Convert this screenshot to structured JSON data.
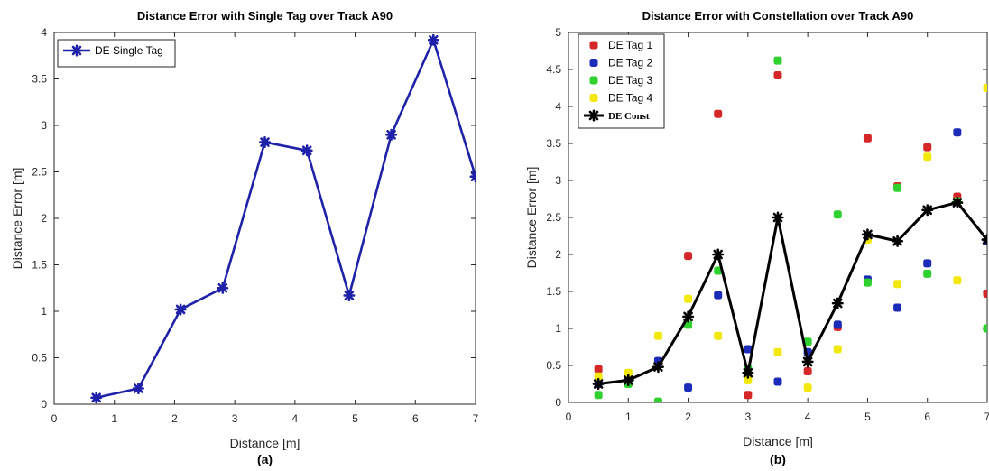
{
  "chart_data": [
    {
      "type": "line",
      "title": "Distance Error with Single Tag over Track A90",
      "xlabel": "Distance [m]",
      "ylabel": "Distance Error [m]",
      "caption": "(a)",
      "xlim": [
        0,
        7
      ],
      "ylim": [
        0,
        4
      ],
      "xticks": [
        0,
        1,
        2,
        3,
        4,
        5,
        6,
        7
      ],
      "yticks": [
        0,
        0.5,
        1,
        1.5,
        2,
        2.5,
        3,
        3.5,
        4
      ],
      "ytick_labels": [
        "0",
        "0.5",
        "1",
        "1.5",
        "2",
        "2.5",
        "3",
        "3.5",
        "4"
      ],
      "grid": false,
      "legend_position": "top-left",
      "series": [
        {
          "name": "DE Single Tag",
          "color": "#1f22a8",
          "x": [
            0.7,
            1.4,
            2.1,
            2.8,
            3.5,
            4.2,
            4.9,
            5.6,
            6.3,
            7.0
          ],
          "values": [
            0.07,
            0.17,
            1.02,
            1.25,
            2.82,
            2.73,
            1.17,
            2.9,
            3.92,
            2.45
          ]
        }
      ]
    },
    {
      "type": "scatter",
      "title": "Distance Error with Constellation over Track A90",
      "xlabel": "Distance [m]",
      "ylabel": "Distance Error [m]",
      "caption": "(b)",
      "xlim": [
        0,
        7
      ],
      "ylim": [
        0,
        5
      ],
      "xticks": [
        0,
        1,
        2,
        3,
        4,
        5,
        6,
        7
      ],
      "yticks": [
        0,
        0.5,
        1,
        1.5,
        2,
        2.5,
        3,
        3.5,
        4,
        4.5,
        5
      ],
      "ytick_labels": [
        "0",
        "0.5",
        "1",
        "1.5",
        "2",
        "2.5",
        "3",
        "3.5",
        "4",
        "4.5",
        "5"
      ],
      "grid": false,
      "legend_position": "top-left",
      "series": [
        {
          "name": "DE Tag 1",
          "color": "#d62728",
          "style": "markers",
          "x": [
            0.5,
            1,
            1.5,
            2,
            2.5,
            3,
            3.5,
            4,
            4.5,
            5,
            5.5,
            6,
            6.5,
            7
          ],
          "values": [
            0.45,
            0.28,
            0.55,
            1.98,
            3.9,
            0.1,
            4.42,
            0.42,
            1.02,
            3.57,
            2.92,
            3.45,
            2.78,
            1.47
          ]
        },
        {
          "name": "DE Tag 2",
          "color": "#1c2bb8",
          "style": "markers",
          "x": [
            0.5,
            1,
            1.5,
            2,
            2.5,
            3,
            3.5,
            4,
            4.5,
            5,
            5.5,
            6,
            6.5,
            7
          ],
          "values": [
            0.25,
            0.3,
            0.56,
            0.2,
            1.45,
            0.72,
            0.28,
            0.68,
            1.05,
            1.66,
            1.28,
            1.88,
            3.65,
            2.18
          ]
        },
        {
          "name": "DE Tag 3",
          "color": "#2ed12e",
          "style": "markers",
          "x": [
            0.5,
            1,
            1.5,
            2,
            2.5,
            3,
            3.5,
            4,
            4.5,
            5,
            5.5,
            6,
            6.5,
            7
          ],
          "values": [
            0.1,
            0.25,
            0.01,
            1.05,
            1.78,
            0.45,
            4.62,
            0.82,
            2.54,
            1.62,
            2.9,
            1.74,
            2.72,
            1.0
          ]
        },
        {
          "name": "DE Tag 4",
          "color": "#f3e80d",
          "style": "markers",
          "x": [
            0.5,
            1,
            1.5,
            2,
            2.5,
            3,
            3.5,
            4,
            4.5,
            5,
            5.5,
            6,
            6.5,
            7
          ],
          "values": [
            0.35,
            0.4,
            0.9,
            1.4,
            0.9,
            0.3,
            0.68,
            0.2,
            0.72,
            2.2,
            1.6,
            3.32,
            1.65,
            4.25
          ]
        },
        {
          "name": "DE Const",
          "color": "#000000",
          "style": "line",
          "x": [
            0.5,
            1,
            1.5,
            2,
            2.5,
            3,
            3.5,
            4,
            4.5,
            5,
            5.5,
            6,
            6.5,
            7
          ],
          "values": [
            0.25,
            0.3,
            0.48,
            1.16,
            2.0,
            0.4,
            2.5,
            0.55,
            1.34,
            2.27,
            2.18,
            2.6,
            2.7,
            2.2
          ]
        }
      ]
    }
  ]
}
